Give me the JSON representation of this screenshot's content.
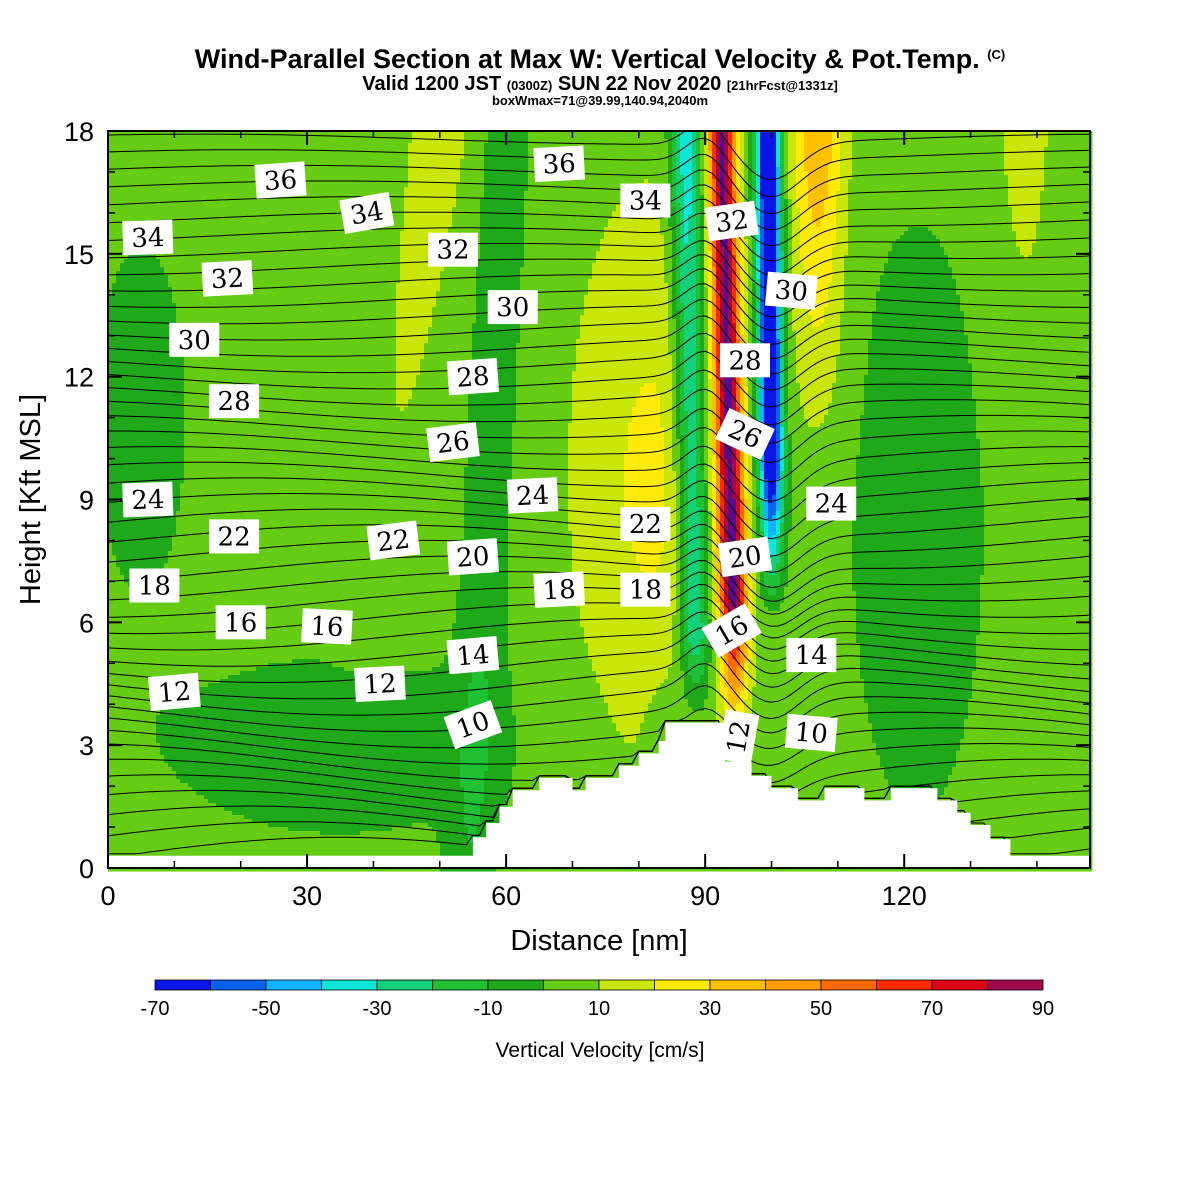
{
  "title": {
    "main": "Wind-Parallel Section at Max W: Vertical Velocity & Pot.Temp.",
    "copyright": "(C)",
    "valid_prefix": "Valid 1200 JST",
    "valid_utc": "(0300Z)",
    "valid_date": "SUN 22 Nov 2020",
    "forecast": "[21hrFcst@1331z]",
    "box": "boxWmax=71@39.99,140.94,2040m"
  },
  "chart_data": {
    "type": "heatmap",
    "xlabel": "Distance [nm]",
    "ylabel": "Height [Kft MSL]",
    "xlim": [
      0,
      148
    ],
    "ylim": [
      0,
      18
    ],
    "xticks": [
      0,
      30,
      60,
      90,
      120
    ],
    "yticks": [
      0,
      3,
      6,
      9,
      12,
      15,
      18
    ],
    "colorbar": {
      "label": "Vertical Velocity [cm/s]",
      "ticks": [
        -70,
        -50,
        -30,
        -10,
        10,
        30,
        50,
        70,
        90
      ],
      "levels": [
        -70,
        -60,
        -50,
        -40,
        -30,
        -20,
        -10,
        0,
        10,
        20,
        30,
        40,
        50,
        60,
        70,
        80,
        90
      ],
      "colors": [
        "#0a16e8",
        "#0a62f0",
        "#10b4ff",
        "#10e6d8",
        "#14d078",
        "#20c034",
        "#1ea81a",
        "#66cc14",
        "#c8e60a",
        "#ffea0a",
        "#ffc000",
        "#ff9c00",
        "#ff6a00",
        "#ff2a00",
        "#dc0418",
        "#a00a4a",
        "#5a0a8a"
      ]
    },
    "contour_field": "Potential temperature",
    "contour_labels": [
      {
        "text": "36",
        "x": 26,
        "y": 16.8,
        "rot": -4
      },
      {
        "text": "36",
        "x": 68,
        "y": 17.2,
        "rot": -3
      },
      {
        "text": "34",
        "x": 6,
        "y": 15.4,
        "rot": -2
      },
      {
        "text": "34",
        "x": 39,
        "y": 16.0,
        "rot": -10
      },
      {
        "text": "34",
        "x": 81,
        "y": 16.3,
        "rot": 0
      },
      {
        "text": "32",
        "x": 18,
        "y": 14.4,
        "rot": -3
      },
      {
        "text": "32",
        "x": 52,
        "y": 15.1,
        "rot": 0
      },
      {
        "text": "32",
        "x": 94,
        "y": 15.8,
        "rot": -8
      },
      {
        "text": "30",
        "x": 13,
        "y": 12.9,
        "rot": 0
      },
      {
        "text": "30",
        "x": 61,
        "y": 13.7,
        "rot": 0
      },
      {
        "text": "30",
        "x": 103,
        "y": 14.1,
        "rot": 5
      },
      {
        "text": "28",
        "x": 19,
        "y": 11.4,
        "rot": 0
      },
      {
        "text": "28",
        "x": 55,
        "y": 12.0,
        "rot": -4
      },
      {
        "text": "28",
        "x": 96,
        "y": 12.4,
        "rot": 0
      },
      {
        "text": "26",
        "x": 52,
        "y": 10.4,
        "rot": -7
      },
      {
        "text": "26",
        "x": 96,
        "y": 10.6,
        "rot": 25
      },
      {
        "text": "24",
        "x": 6,
        "y": 9.0,
        "rot": -2
      },
      {
        "text": "24",
        "x": 64,
        "y": 9.1,
        "rot": -3
      },
      {
        "text": "24",
        "x": 109,
        "y": 8.9,
        "rot": 0
      },
      {
        "text": "22",
        "x": 19,
        "y": 8.1,
        "rot": 0
      },
      {
        "text": "22",
        "x": 43,
        "y": 8.0,
        "rot": -7
      },
      {
        "text": "22",
        "x": 81,
        "y": 8.4,
        "rot": 0
      },
      {
        "text": "20",
        "x": 55,
        "y": 7.6,
        "rot": -4
      },
      {
        "text": "20",
        "x": 96,
        "y": 7.6,
        "rot": -8
      },
      {
        "text": "18",
        "x": 7,
        "y": 6.9,
        "rot": 0
      },
      {
        "text": "18",
        "x": 68,
        "y": 6.8,
        "rot": -3
      },
      {
        "text": "18",
        "x": 81,
        "y": 6.8,
        "rot": 0
      },
      {
        "text": "16",
        "x": 20,
        "y": 6.0,
        "rot": 0
      },
      {
        "text": "16",
        "x": 33,
        "y": 5.9,
        "rot": 3
      },
      {
        "text": "16",
        "x": 94,
        "y": 5.8,
        "rot": -30
      },
      {
        "text": "14",
        "x": 55,
        "y": 5.2,
        "rot": -5
      },
      {
        "text": "14",
        "x": 106,
        "y": 5.2,
        "rot": 0
      },
      {
        "text": "12",
        "x": 10,
        "y": 4.3,
        "rot": -5
      },
      {
        "text": "12",
        "x": 41,
        "y": 4.5,
        "rot": -3
      },
      {
        "text": "12",
        "x": 95,
        "y": 3.2,
        "rot": -80
      },
      {
        "text": "10",
        "x": 55,
        "y": 3.5,
        "rot": -20
      },
      {
        "text": "10",
        "x": 106,
        "y": 3.3,
        "rot": 5
      }
    ],
    "terrain": [
      [
        0,
        0.3
      ],
      [
        55,
        0.3
      ],
      [
        55,
        0.75
      ],
      [
        57,
        0.75
      ],
      [
        57,
        1.1
      ],
      [
        59,
        1.1
      ],
      [
        59,
        1.5
      ],
      [
        61,
        1.5
      ],
      [
        61,
        1.9
      ],
      [
        65,
        1.9
      ],
      [
        65,
        2.2
      ],
      [
        70,
        2.2
      ],
      [
        70,
        1.9
      ],
      [
        72,
        1.9
      ],
      [
        72,
        2.2
      ],
      [
        77,
        2.2
      ],
      [
        77,
        2.5
      ],
      [
        80,
        2.5
      ],
      [
        80,
        2.8
      ],
      [
        83,
        2.8
      ],
      [
        83,
        3.1
      ],
      [
        84,
        3.1
      ],
      [
        84,
        3.55
      ],
      [
        93,
        3.55
      ],
      [
        93,
        2.6
      ],
      [
        97,
        2.6
      ],
      [
        97,
        2.25
      ],
      [
        100,
        2.25
      ],
      [
        100,
        1.95
      ],
      [
        104,
        1.95
      ],
      [
        104,
        1.65
      ],
      [
        108,
        1.65
      ],
      [
        108,
        1.95
      ],
      [
        114,
        1.95
      ],
      [
        114,
        1.65
      ],
      [
        118,
        1.65
      ],
      [
        118,
        1.95
      ],
      [
        125,
        1.95
      ],
      [
        125,
        1.65
      ],
      [
        128,
        1.65
      ],
      [
        128,
        1.35
      ],
      [
        130,
        1.35
      ],
      [
        130,
        1.05
      ],
      [
        133,
        1.05
      ],
      [
        133,
        0.7
      ],
      [
        136,
        0.7
      ],
      [
        136,
        0.3
      ],
      [
        148,
        0.3
      ]
    ],
    "features": [
      {
        "cx": 82,
        "cy": 9.5,
        "sx": 12,
        "sy": 7,
        "v": 18
      },
      {
        "cx": 122,
        "cy": 8.5,
        "sx": 11,
        "sy": 8,
        "v": -9
      },
      {
        "cx": 84,
        "cy": 3.0,
        "sx": 3,
        "sy": 2,
        "v": -8
      }
    ]
  }
}
